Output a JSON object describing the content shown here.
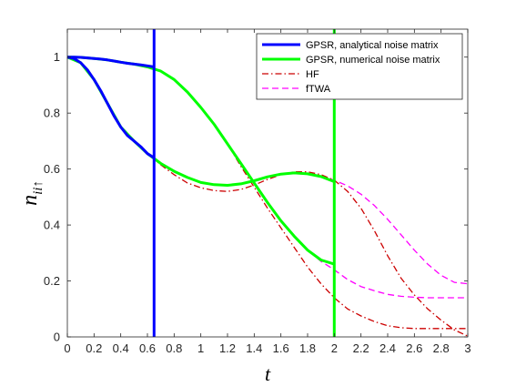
{
  "chart_data": {
    "type": "line",
    "xlabel": "t",
    "ylabel": {
      "base": "n",
      "sub": "ii↑"
    },
    "xlim": [
      0,
      3
    ],
    "ylim": [
      0,
      1.1
    ],
    "xticks": [
      0,
      0.2,
      0.4,
      0.6,
      0.8,
      1,
      1.2,
      1.4,
      1.6,
      1.8,
      2,
      2.2,
      2.4,
      2.6,
      2.8,
      3
    ],
    "yticks": [
      0,
      0.2,
      0.4,
      0.6,
      0.8,
      1
    ],
    "grid": false,
    "legend_position": "top-right",
    "series": [
      {
        "name": "GPSR, analytical noise matrix",
        "color": "#0000ff",
        "style": "solid",
        "curves": [
          {
            "x": [
              0,
              0.05,
              0.1,
              0.15,
              0.2,
              0.25,
              0.3,
              0.35,
              0.4,
              0.45,
              0.5,
              0.55,
              0.6,
              0.65
            ],
            "y": [
              1.0,
              0.995,
              0.98,
              0.955,
              0.92,
              0.88,
              0.835,
              0.79,
              0.75,
              0.72,
              0.7,
              0.68,
              0.655,
              0.64
            ]
          },
          {
            "x": [
              0,
              0.05,
              0.1,
              0.15,
              0.2,
              0.25,
              0.3,
              0.35,
              0.4,
              0.45,
              0.5,
              0.55,
              0.6,
              0.65
            ],
            "y": [
              1.0,
              1.0,
              0.999,
              0.997,
              0.995,
              0.993,
              0.99,
              0.986,
              0.982,
              0.978,
              0.975,
              0.972,
              0.969,
              0.965
            ]
          },
          {
            "x": [
              0.65,
              0.65
            ],
            "y": [
              0.0,
              1.1
            ]
          }
        ]
      },
      {
        "name": "GPSR, numerical noise matrix",
        "color": "#00ff00",
        "style": "solid",
        "curves": [
          {
            "x": [
              0,
              0.1,
              0.2,
              0.3,
              0.4,
              0.5,
              0.6,
              0.7,
              0.8,
              0.9,
              1.0,
              1.1,
              1.2,
              1.3,
              1.4,
              1.5,
              1.6,
              1.7,
              1.8,
              1.9,
              2.0
            ],
            "y": [
              1.0,
              0.98,
              0.92,
              0.835,
              0.75,
              0.7,
              0.655,
              0.62,
              0.592,
              0.57,
              0.552,
              0.544,
              0.542,
              0.547,
              0.558,
              0.572,
              0.582,
              0.586,
              0.583,
              0.573,
              0.555
            ]
          },
          {
            "x": [
              0,
              0.1,
              0.2,
              0.3,
              0.4,
              0.5,
              0.6,
              0.7,
              0.8,
              0.9,
              1.0,
              1.1,
              1.2,
              1.3,
              1.4,
              1.5,
              1.6,
              1.7,
              1.8,
              1.9,
              2.0
            ],
            "y": [
              1.0,
              0.999,
              0.995,
              0.99,
              0.982,
              0.975,
              0.965,
              0.95,
              0.92,
              0.875,
              0.82,
              0.76,
              0.69,
              0.62,
              0.55,
              0.48,
              0.415,
              0.36,
              0.31,
              0.275,
              0.26
            ]
          },
          {
            "x": [
              2.0,
              2.0
            ],
            "y": [
              0.0,
              1.1
            ]
          }
        ]
      },
      {
        "name": "HF",
        "color": "#cc0000",
        "style": "dashdot",
        "curves": [
          {
            "x": [
              0,
              0.1,
              0.2,
              0.3,
              0.4,
              0.5,
              0.6,
              0.7,
              0.8,
              0.9,
              1.0,
              1.1,
              1.2,
              1.3,
              1.4,
              1.5,
              1.6,
              1.7,
              1.8,
              1.9,
              2.0,
              2.1,
              2.2,
              2.3,
              2.4,
              2.5,
              2.6,
              2.7,
              2.8,
              2.9,
              3.0
            ],
            "y": [
              1.0,
              0.98,
              0.92,
              0.835,
              0.75,
              0.7,
              0.655,
              0.615,
              0.58,
              0.55,
              0.533,
              0.523,
              0.52,
              0.527,
              0.543,
              0.563,
              0.58,
              0.59,
              0.59,
              0.58,
              0.56,
              0.52,
              0.46,
              0.38,
              0.29,
              0.21,
              0.15,
              0.1,
              0.06,
              0.025,
              0.003
            ]
          },
          {
            "x": [
              0,
              0.1,
              0.2,
              0.3,
              0.4,
              0.5,
              0.6,
              0.7,
              0.8,
              0.9,
              1.0,
              1.1,
              1.2,
              1.3,
              1.4,
              1.5,
              1.6,
              1.7,
              1.8,
              1.9,
              2.0,
              2.1,
              2.2,
              2.3,
              2.4,
              2.5,
              2.6,
              2.7,
              2.8,
              2.9,
              3.0
            ],
            "y": [
              1.0,
              0.999,
              0.995,
              0.99,
              0.982,
              0.975,
              0.965,
              0.95,
              0.92,
              0.875,
              0.82,
              0.76,
              0.69,
              0.61,
              0.535,
              0.46,
              0.39,
              0.32,
              0.25,
              0.19,
              0.14,
              0.1,
              0.075,
              0.055,
              0.04,
              0.033,
              0.03,
              0.03,
              0.03,
              0.03,
              0.03
            ]
          }
        ]
      },
      {
        "name": "fTWA",
        "color": "#ff00ff",
        "style": "dashed",
        "curves": [
          {
            "x": [
              0,
              0.1,
              0.2,
              0.3,
              0.4,
              0.5,
              0.6,
              0.7,
              0.8,
              0.9,
              1.0,
              1.1,
              1.2,
              1.3,
              1.4,
              1.5,
              1.6,
              1.7,
              1.8,
              1.9,
              2.0,
              2.1,
              2.2,
              2.3,
              2.4,
              2.5,
              2.6,
              2.7,
              2.8,
              2.9,
              3.0
            ],
            "y": [
              1.0,
              0.98,
              0.92,
              0.835,
              0.75,
              0.7,
              0.655,
              0.62,
              0.592,
              0.57,
              0.552,
              0.544,
              0.542,
              0.547,
              0.558,
              0.572,
              0.582,
              0.586,
              0.583,
              0.575,
              0.56,
              0.54,
              0.51,
              0.47,
              0.42,
              0.365,
              0.31,
              0.26,
              0.22,
              0.195,
              0.19
            ]
          },
          {
            "x": [
              0,
              0.1,
              0.2,
              0.3,
              0.4,
              0.5,
              0.6,
              0.7,
              0.8,
              0.9,
              1.0,
              1.1,
              1.2,
              1.3,
              1.4,
              1.5,
              1.6,
              1.7,
              1.8,
              1.9,
              2.0,
              2.1,
              2.2,
              2.3,
              2.4,
              2.5,
              2.6,
              2.7,
              2.8,
              2.9,
              3.0
            ],
            "y": [
              1.0,
              0.999,
              0.995,
              0.99,
              0.982,
              0.975,
              0.965,
              0.95,
              0.92,
              0.875,
              0.82,
              0.76,
              0.69,
              0.62,
              0.55,
              0.48,
              0.415,
              0.36,
              0.31,
              0.27,
              0.24,
              0.205,
              0.18,
              0.165,
              0.152,
              0.145,
              0.142,
              0.14,
              0.14,
              0.14,
              0.14
            ]
          }
        ]
      }
    ]
  }
}
